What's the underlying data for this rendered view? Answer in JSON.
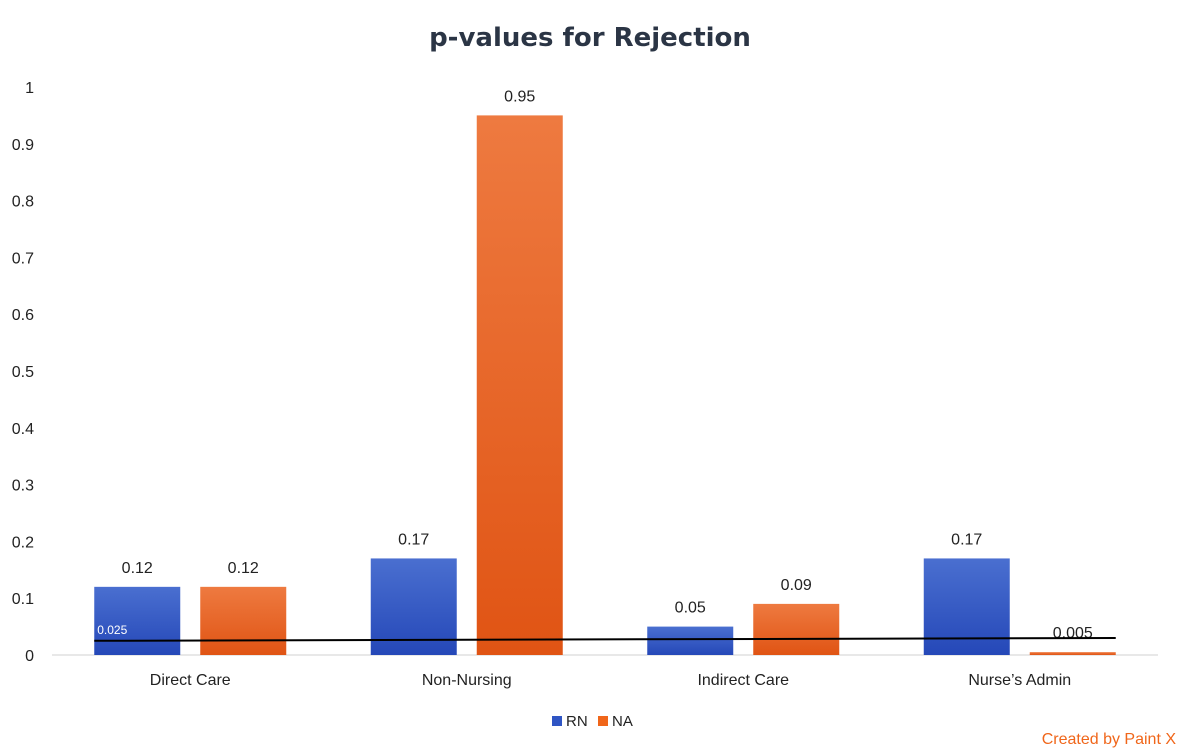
{
  "chart_data": {
    "type": "bar",
    "title": "p-values for Rejection",
    "xlabel": "",
    "ylabel": "",
    "ylim": [
      0,
      1
    ],
    "yticks": [
      "0",
      "0.1",
      "0.2",
      "0.3",
      "0.4",
      "0.5",
      "0.6",
      "0.7",
      "0.8",
      "0.9",
      "1"
    ],
    "categories": [
      "Direct Care",
      "Non-Nursing",
      "Indirect Care",
      "Nurse’s Admin"
    ],
    "series": [
      {
        "name": "RN",
        "color": "#2f55c4",
        "values": [
          0.12,
          0.17,
          0.05,
          0.17
        ],
        "labels": [
          "0.12",
          "0.17",
          "0.05",
          "0.17"
        ]
      },
      {
        "name": "NA",
        "color": "#f0661a",
        "values": [
          0.12,
          0.95,
          0.09,
          0.005
        ],
        "labels": [
          "0.12",
          "0.95",
          "0.09",
          "0.005"
        ]
      }
    ],
    "threshold": {
      "start": 0.025,
      "end": 0.03,
      "label": "0.025",
      "color": "#000000"
    },
    "legend": "bottom-center",
    "grid": false
  },
  "credit": "Created by Paint X"
}
